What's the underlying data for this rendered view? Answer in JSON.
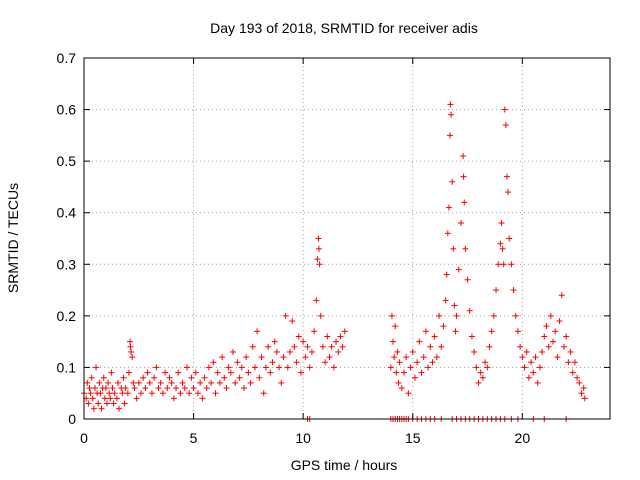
{
  "chart_data": {
    "type": "scatter",
    "title": "Day 193 of 2018, SRMTID for receiver adis",
    "xlabel": "GPS time / hours",
    "ylabel": "SRMTID / TECUs",
    "xlim": [
      0,
      24
    ],
    "ylim": [
      0,
      0.7
    ],
    "xticks": [
      0,
      5,
      10,
      15,
      20
    ],
    "xtick_labels": [
      "0",
      "5",
      "10",
      "15",
      "20"
    ],
    "yticks": [
      0,
      0.1,
      0.2,
      0.3,
      0.4,
      0.5,
      0.6,
      0.7
    ],
    "ytick_labels": [
      "0",
      "0.1",
      "0.2",
      "0.3",
      "0.4",
      "0.5",
      "0.6",
      "0.7"
    ],
    "grid": true,
    "marker": "+",
    "color": "#ff0000",
    "series": [
      {
        "name": "SRMTID",
        "points": [
          [
            0.0,
            0.05
          ],
          [
            0.1,
            0.04
          ],
          [
            0.15,
            0.07
          ],
          [
            0.2,
            0.03
          ],
          [
            0.25,
            0.06
          ],
          [
            0.3,
            0.05
          ],
          [
            0.35,
            0.08
          ],
          [
            0.4,
            0.04
          ],
          [
            0.45,
            0.02
          ],
          [
            0.5,
            0.06
          ],
          [
            0.55,
            0.1
          ],
          [
            0.6,
            0.05
          ],
          [
            0.65,
            0.03
          ],
          [
            0.7,
            0.07
          ],
          [
            0.75,
            0.05
          ],
          [
            0.8,
            0.02
          ],
          [
            0.85,
            0.06
          ],
          [
            0.9,
            0.08
          ],
          [
            0.95,
            0.04
          ],
          [
            1.0,
            0.06
          ],
          [
            1.05,
            0.03
          ],
          [
            1.1,
            0.07
          ],
          [
            1.15,
            0.05
          ],
          [
            1.2,
            0.04
          ],
          [
            1.25,
            0.09
          ],
          [
            1.3,
            0.06
          ],
          [
            1.35,
            0.03
          ],
          [
            1.4,
            0.05
          ],
          [
            1.5,
            0.04
          ],
          [
            1.55,
            0.07
          ],
          [
            1.6,
            0.02
          ],
          [
            1.7,
            0.06
          ],
          [
            1.75,
            0.05
          ],
          [
            1.8,
            0.08
          ],
          [
            1.85,
            0.03
          ],
          [
            1.9,
            0.06
          ],
          [
            2.0,
            0.05
          ],
          [
            2.05,
            0.09
          ],
          [
            2.1,
            0.15
          ],
          [
            2.12,
            0.14
          ],
          [
            2.15,
            0.13
          ],
          [
            2.2,
            0.12
          ],
          [
            2.25,
            0.07
          ],
          [
            2.3,
            0.06
          ],
          [
            2.4,
            0.04
          ],
          [
            2.5,
            0.07
          ],
          [
            2.6,
            0.05
          ],
          [
            2.7,
            0.08
          ],
          [
            2.8,
            0.06
          ],
          [
            2.9,
            0.09
          ],
          [
            3.0,
            0.07
          ],
          [
            3.1,
            0.05
          ],
          [
            3.2,
            0.08
          ],
          [
            3.3,
            0.1
          ],
          [
            3.4,
            0.06
          ],
          [
            3.5,
            0.07
          ],
          [
            3.6,
            0.05
          ],
          [
            3.7,
            0.09
          ],
          [
            3.8,
            0.06
          ],
          [
            3.9,
            0.08
          ],
          [
            4.0,
            0.07
          ],
          [
            4.1,
            0.04
          ],
          [
            4.2,
            0.06
          ],
          [
            4.3,
            0.09
          ],
          [
            4.4,
            0.05
          ],
          [
            4.5,
            0.07
          ],
          [
            4.6,
            0.06
          ],
          [
            4.7,
            0.1
          ],
          [
            4.8,
            0.05
          ],
          [
            4.9,
            0.08
          ],
          [
            5.0,
            0.06
          ],
          [
            5.1,
            0.09
          ],
          [
            5.2,
            0.05
          ],
          [
            5.3,
            0.07
          ],
          [
            5.4,
            0.04
          ],
          [
            5.5,
            0.08
          ],
          [
            5.6,
            0.06
          ],
          [
            5.7,
            0.1
          ],
          [
            5.8,
            0.07
          ],
          [
            5.9,
            0.11
          ],
          [
            6.0,
            0.05
          ],
          [
            6.1,
            0.09
          ],
          [
            6.2,
            0.07
          ],
          [
            6.3,
            0.12
          ],
          [
            6.4,
            0.08
          ],
          [
            6.5,
            0.06
          ],
          [
            6.6,
            0.1
          ],
          [
            6.7,
            0.09
          ],
          [
            6.8,
            0.13
          ],
          [
            6.9,
            0.07
          ],
          [
            7.0,
            0.11
          ],
          [
            7.1,
            0.08
          ],
          [
            7.2,
            0.1
          ],
          [
            7.3,
            0.06
          ],
          [
            7.4,
            0.12
          ],
          [
            7.5,
            0.09
          ],
          [
            7.6,
            0.07
          ],
          [
            7.7,
            0.14
          ],
          [
            7.8,
            0.1
          ],
          [
            7.9,
            0.17
          ],
          [
            8.0,
            0.08
          ],
          [
            8.1,
            0.12
          ],
          [
            8.2,
            0.05
          ],
          [
            8.3,
            0.1
          ],
          [
            8.4,
            0.14
          ],
          [
            8.5,
            0.09
          ],
          [
            8.6,
            0.11
          ],
          [
            8.7,
            0.15
          ],
          [
            8.8,
            0.13
          ],
          [
            8.9,
            0.1
          ],
          [
            9.0,
            0.07
          ],
          [
            9.1,
            0.12
          ],
          [
            9.2,
            0.2
          ],
          [
            9.3,
            0.1
          ],
          [
            9.4,
            0.13
          ],
          [
            9.5,
            0.19
          ],
          [
            9.6,
            0.14
          ],
          [
            9.7,
            0.11
          ],
          [
            9.8,
            0.16
          ],
          [
            9.9,
            0.09
          ],
          [
            10.0,
            0.15
          ],
          [
            10.1,
            0.12
          ],
          [
            10.2,
            0.14
          ],
          [
            10.3,
            0.1
          ],
          [
            10.4,
            0.13
          ],
          [
            10.5,
            0.17
          ],
          [
            10.6,
            0.23
          ],
          [
            10.65,
            0.31
          ],
          [
            10.7,
            0.35
          ],
          [
            10.72,
            0.33
          ],
          [
            10.75,
            0.3
          ],
          [
            10.8,
            0.2
          ],
          [
            10.9,
            0.14
          ],
          [
            11.0,
            0.11
          ],
          [
            11.1,
            0.16
          ],
          [
            11.2,
            0.12
          ],
          [
            11.3,
            0.14
          ],
          [
            11.4,
            0.1
          ],
          [
            11.5,
            0.15
          ],
          [
            11.6,
            0.13
          ],
          [
            11.7,
            0.16
          ],
          [
            11.8,
            0.14
          ],
          [
            11.9,
            0.17
          ],
          [
            14.0,
            0.1
          ],
          [
            14.05,
            0.2
          ],
          [
            14.1,
            0.15
          ],
          [
            14.15,
            0.12
          ],
          [
            14.2,
            0.18
          ],
          [
            14.25,
            0.09
          ],
          [
            14.3,
            0.13
          ],
          [
            14.35,
            0.07
          ],
          [
            14.4,
            0.11
          ],
          [
            14.5,
            0.06
          ],
          [
            14.6,
            0.09
          ],
          [
            14.7,
            0.12
          ],
          [
            14.8,
            0.05
          ],
          [
            14.9,
            0.1
          ],
          [
            15.0,
            0.13
          ],
          [
            15.1,
            0.08
          ],
          [
            15.2,
            0.11
          ],
          [
            15.3,
            0.15
          ],
          [
            15.4,
            0.09
          ],
          [
            15.5,
            0.12
          ],
          [
            15.6,
            0.17
          ],
          [
            15.7,
            0.1
          ],
          [
            15.8,
            0.14
          ],
          [
            15.9,
            0.11
          ],
          [
            16.0,
            0.16
          ],
          [
            16.1,
            0.12
          ],
          [
            16.2,
            0.2
          ],
          [
            16.3,
            0.14
          ],
          [
            16.4,
            0.18
          ],
          [
            16.5,
            0.23
          ],
          [
            16.55,
            0.28
          ],
          [
            16.6,
            0.36
          ],
          [
            16.65,
            0.41
          ],
          [
            16.7,
            0.55
          ],
          [
            16.72,
            0.61
          ],
          [
            16.75,
            0.59
          ],
          [
            16.8,
            0.46
          ],
          [
            16.85,
            0.33
          ],
          [
            16.9,
            0.22
          ],
          [
            16.95,
            0.17
          ],
          [
            17.0,
            0.2
          ],
          [
            17.1,
            0.29
          ],
          [
            17.2,
            0.38
          ],
          [
            17.3,
            0.51
          ],
          [
            17.32,
            0.47
          ],
          [
            17.35,
            0.42
          ],
          [
            17.4,
            0.33
          ],
          [
            17.5,
            0.27
          ],
          [
            17.6,
            0.21
          ],
          [
            17.7,
            0.16
          ],
          [
            17.8,
            0.13
          ],
          [
            17.9,
            0.1
          ],
          [
            18.0,
            0.07
          ],
          [
            18.1,
            0.09
          ],
          [
            18.2,
            0.08
          ],
          [
            18.3,
            0.11
          ],
          [
            18.4,
            0.1
          ],
          [
            18.5,
            0.14
          ],
          [
            18.6,
            0.17
          ],
          [
            18.7,
            0.2
          ],
          [
            18.8,
            0.25
          ],
          [
            18.9,
            0.3
          ],
          [
            19.0,
            0.34
          ],
          [
            19.05,
            0.38
          ],
          [
            19.1,
            0.33
          ],
          [
            19.15,
            0.3
          ],
          [
            19.2,
            0.6
          ],
          [
            19.25,
            0.57
          ],
          [
            19.3,
            0.47
          ],
          [
            19.35,
            0.44
          ],
          [
            19.4,
            0.35
          ],
          [
            19.5,
            0.3
          ],
          [
            19.6,
            0.25
          ],
          [
            19.7,
            0.2
          ],
          [
            19.8,
            0.17
          ],
          [
            19.9,
            0.14
          ],
          [
            20.0,
            0.12
          ],
          [
            20.1,
            0.1
          ],
          [
            20.2,
            0.13
          ],
          [
            20.3,
            0.08
          ],
          [
            20.4,
            0.11
          ],
          [
            20.5,
            0.09
          ],
          [
            20.6,
            0.12
          ],
          [
            20.7,
            0.07
          ],
          [
            20.8,
            0.1
          ],
          [
            20.9,
            0.13
          ],
          [
            21.0,
            0.16
          ],
          [
            21.1,
            0.18
          ],
          [
            21.2,
            0.14
          ],
          [
            21.3,
            0.2
          ],
          [
            21.4,
            0.15
          ],
          [
            21.5,
            0.17
          ],
          [
            21.6,
            0.12
          ],
          [
            21.7,
            0.19
          ],
          [
            21.8,
            0.24
          ],
          [
            21.9,
            0.14
          ],
          [
            22.0,
            0.16
          ],
          [
            22.1,
            0.11
          ],
          [
            22.2,
            0.13
          ],
          [
            22.3,
            0.09
          ],
          [
            22.4,
            0.11
          ],
          [
            22.5,
            0.08
          ],
          [
            22.6,
            0.07
          ],
          [
            22.7,
            0.05
          ],
          [
            22.8,
            0.06
          ],
          [
            22.85,
            0.04
          ]
        ]
      }
    ],
    "zero_markers_x": [
      10.2,
      10.3,
      14.0,
      14.1,
      14.2,
      14.3,
      14.4,
      14.5,
      14.6,
      14.7,
      14.8,
      15.0,
      15.2,
      15.4,
      15.6,
      15.8,
      16.0,
      16.3,
      16.8,
      17.0,
      17.2,
      17.4,
      17.6,
      17.8,
      18.0,
      18.2,
      18.4,
      18.6,
      18.8,
      19.0,
      19.2,
      19.5,
      19.8,
      20.5,
      21.0,
      22.0
    ]
  }
}
